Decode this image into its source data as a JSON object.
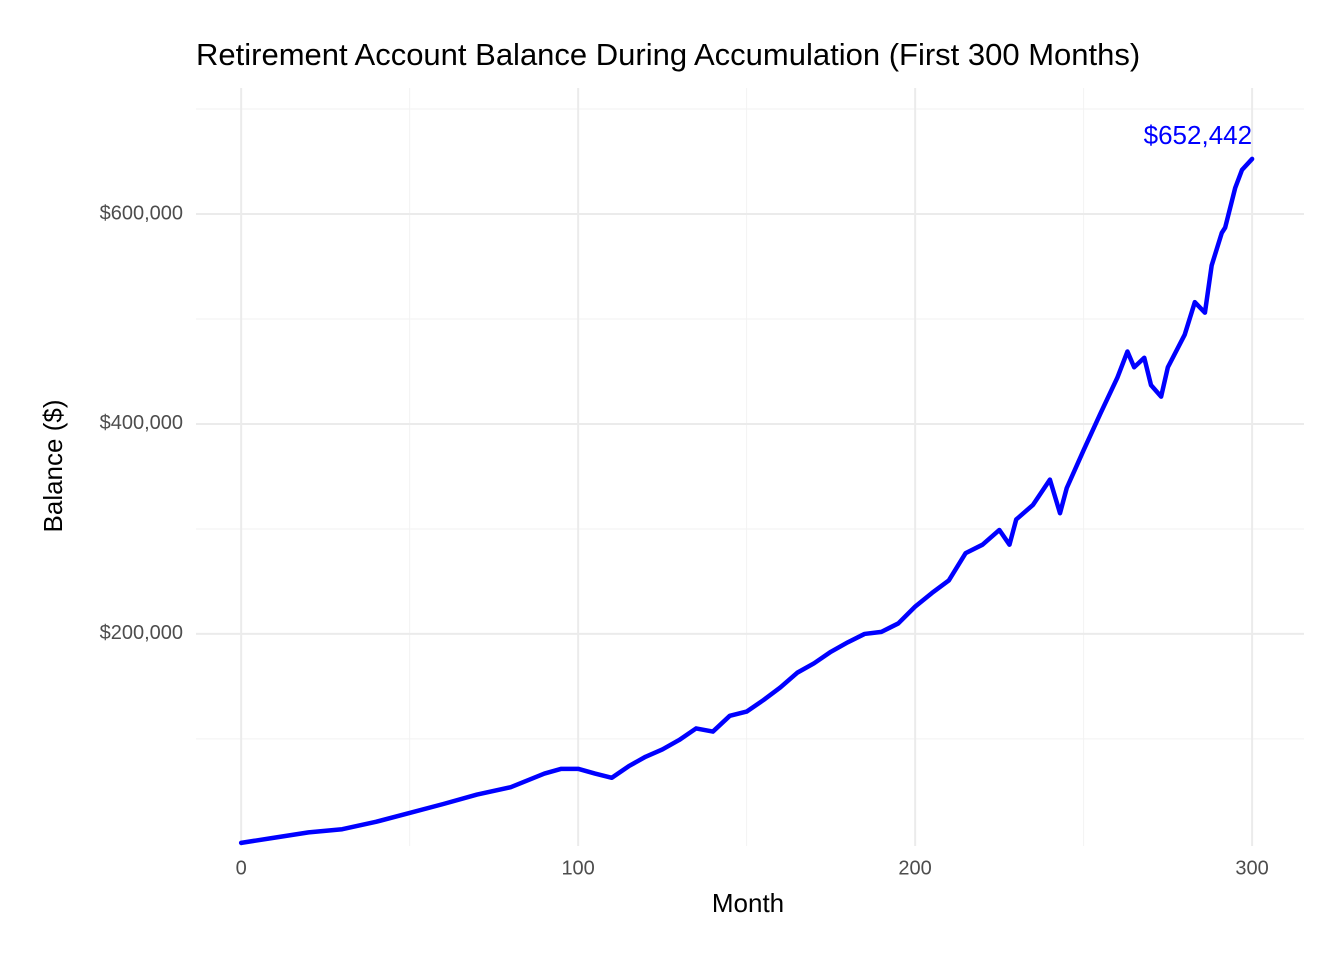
{
  "chart_data": {
    "type": "line",
    "title": "Retirement Account Balance During Accumulation (First 300 Months)",
    "x_label": "Month",
    "y_label": "Balance ($)",
    "x": [
      0,
      10,
      20,
      30,
      40,
      50,
      60,
      70,
      80,
      90,
      95,
      100,
      105,
      110,
      115,
      120,
      125,
      130,
      135,
      140,
      145,
      150,
      155,
      160,
      165,
      170,
      175,
      180,
      185,
      190,
      195,
      200,
      205,
      210,
      215,
      220,
      225,
      228,
      230,
      235,
      240,
      243,
      245,
      250,
      255,
      260,
      263,
      265,
      268,
      270,
      273,
      275,
      280,
      283,
      286,
      288,
      291,
      292,
      295,
      297,
      300
    ],
    "series": [
      {
        "name": "Balance",
        "color": "#0000ff",
        "values": [
          1000,
          6000,
          11000,
          14000,
          21000,
          29500,
          38000,
          47000,
          54000,
          67000,
          71500,
          71500,
          67000,
          63000,
          74000,
          83000,
          90000,
          99000,
          110000,
          107000,
          122000,
          126000,
          137000,
          149000,
          163000,
          172000,
          183000,
          192000,
          200000,
          202000,
          210000,
          226000,
          239000,
          251000,
          277000,
          285000,
          299000,
          285000,
          309000,
          323000,
          347000,
          315000,
          339000,
          375000,
          410000,
          444000,
          469000,
          454000,
          463000,
          437000,
          426000,
          454000,
          485000,
          516000,
          506000,
          551000,
          582000,
          587000,
          625000,
          642000,
          652442
        ],
        "value_labels": [
          null,
          null,
          null,
          null,
          null,
          null,
          null,
          null,
          null,
          null,
          null,
          null,
          null,
          null,
          null,
          null,
          null,
          null,
          null,
          null,
          null,
          null,
          null,
          null,
          null,
          null,
          null,
          null,
          null,
          null,
          null,
          null,
          null,
          null,
          null,
          null,
          null,
          null,
          null,
          null,
          null,
          null,
          null,
          null,
          null,
          null,
          null,
          null,
          null,
          null,
          null,
          null,
          null,
          null,
          null,
          null,
          null,
          null,
          null,
          null,
          "$652,442"
        ]
      }
    ],
    "xlim": [
      -13.4,
      315.4
    ],
    "ylim": [
      -2000,
      720000
    ],
    "xticks": [
      0,
      100,
      200,
      300
    ],
    "yticks": [
      {
        "value": 200000,
        "label": "$200,000"
      },
      {
        "value": 400000,
        "label": "$400,000"
      },
      {
        "value": 600000,
        "label": "$600,000"
      }
    ],
    "minor_xticks": [
      50,
      150,
      250
    ],
    "minor_yticks": [
      100000,
      300000,
      500000,
      700000
    ],
    "grid": true
  }
}
